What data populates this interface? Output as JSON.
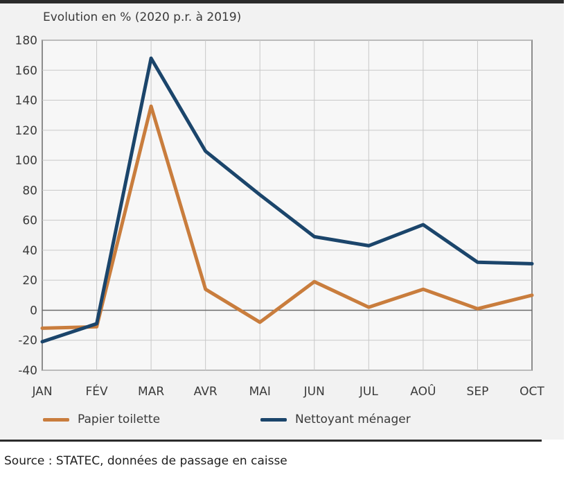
{
  "header": {
    "title": "Evolution en % (2020 p.r. à 2019)"
  },
  "source": "Source : STATEC, données de passage en caisse",
  "colors": {
    "papier": "#c97d3d",
    "nettoyant": "#1b456b",
    "grid": "#c8c8c8",
    "axis": "#6b6b6b",
    "background": "#f2f2f2"
  },
  "chart_data": {
    "type": "line",
    "title": "Evolution en % (2020 p.r. à 2019)",
    "categories": [
      "JAN",
      "FÉV",
      "MAR",
      "AVR",
      "MAI",
      "JUN",
      "JUL",
      "AOÛ",
      "SEP",
      "OCT"
    ],
    "series": [
      {
        "name": "Papier toilette",
        "color": "#c97d3d",
        "values": [
          -12,
          -11,
          136,
          14,
          -8,
          19,
          2,
          14,
          1,
          10
        ]
      },
      {
        "name": "Nettoyant ménager",
        "color": "#1b456b",
        "values": [
          -21,
          -9,
          168,
          106,
          77,
          49,
          43,
          57,
          32,
          31
        ]
      }
    ],
    "yticks": [
      180,
      160,
      140,
      120,
      100,
      80,
      60,
      40,
      20,
      0,
      -20,
      -40
    ],
    "ylim": [
      -40,
      180
    ],
    "grid": true,
    "legend_position": "bottom"
  }
}
